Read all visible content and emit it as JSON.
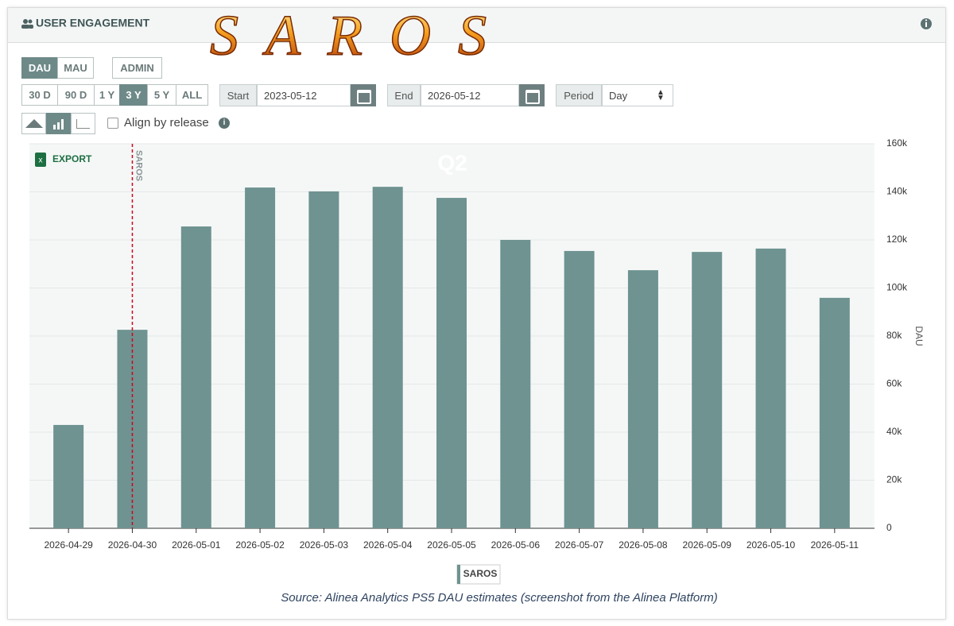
{
  "ui": {
    "header": {
      "title": "USER ENGAGEMENT",
      "logo": "SAROS"
    },
    "metric_buttons": [
      "DAU",
      "MAU"
    ],
    "admin_button": "ADMIN",
    "range_buttons": [
      "30 D",
      "90 D",
      "1 Y",
      "3 Y",
      "5 Y",
      "ALL"
    ],
    "start": {
      "label": "Start",
      "value": "2023-05-12"
    },
    "end": {
      "label": "End",
      "value": "2026-05-12"
    },
    "period": {
      "label": "Period",
      "value": "Day"
    },
    "align_checkbox": "Align by release",
    "export": "EXPORT",
    "watermark": "Q2",
    "source": "Source: Alinea Analytics PS5 DAU estimates (screenshot from the Alinea Platform)"
  },
  "chart_data": {
    "type": "bar",
    "y_label": "DAU",
    "categories": [
      "2026-04-29",
      "2026-04-30",
      "2026-05-01",
      "2026-05-02",
      "2026-05-03",
      "2026-05-04",
      "2026-05-05",
      "2026-05-06",
      "2026-05-07",
      "2026-05-08",
      "2026-05-09",
      "2026-05-10",
      "2026-05-11"
    ],
    "series": [
      {
        "name": "SAROS",
        "color": "#6e9391",
        "values": [
          43000,
          82600,
          125600,
          141800,
          140200,
          142100,
          137500,
          120000,
          115400,
          107400,
          115000,
          116400,
          95900
        ]
      }
    ],
    "ylim": [
      0,
      160000
    ],
    "yticks": [
      0,
      {
        "value": 20000,
        "label": "20k"
      },
      {
        "value": 40000,
        "label": "40k"
      },
      {
        "value": 60000,
        "label": "60k"
      },
      {
        "value": 80000,
        "label": "80k"
      },
      {
        "value": 100000,
        "label": "100k"
      },
      {
        "value": 120000,
        "label": "120k"
      },
      {
        "value": 140000,
        "label": "140k"
      },
      {
        "value": 160000,
        "label": "160k"
      }
    ],
    "grid": true,
    "annotations": [
      {
        "text": "SAROS",
        "x": "2026-04-30",
        "color": "#d0021b"
      }
    ]
  }
}
